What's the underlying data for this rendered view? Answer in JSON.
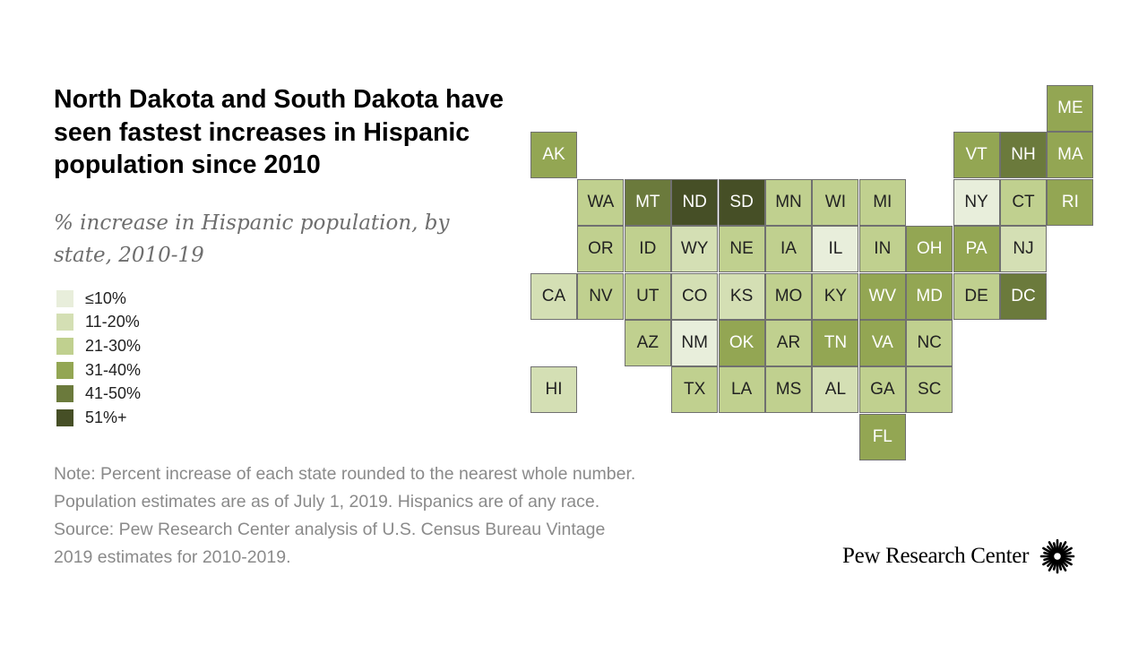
{
  "title": "North Dakota and South Dakota have seen fastest increases in Hispanic population since 2010",
  "subtitle": "% increase in Hispanic population, by state, 2010-19",
  "legend": [
    {
      "label": "≤10%",
      "color": "#e8eedb"
    },
    {
      "label": "11-20%",
      "color": "#d4dfb4"
    },
    {
      "label": "21-30%",
      "color": "#c0d08f"
    },
    {
      "label": "31-40%",
      "color": "#93a653"
    },
    {
      "label": "41-50%",
      "color": "#6b7a3c"
    },
    {
      "label": "51%+",
      "color": "#464f26"
    }
  ],
  "note": [
    "Note: Percent increase of each state rounded to the nearest whole number.",
    "Population estimates are as of July 1, 2019. Hispanics are of any race.",
    "Source: Pew Research Center analysis of U.S. Census Bureau Vintage",
    "2019 estimates for 2010-2019."
  ],
  "brand": "Pew Research Center",
  "states": [
    {
      "abbr": "ME",
      "col": 11,
      "row": 0,
      "bin": 3
    },
    {
      "abbr": "AK",
      "col": 0,
      "row": 1,
      "bin": 3
    },
    {
      "abbr": "VT",
      "col": 9,
      "row": 1,
      "bin": 3
    },
    {
      "abbr": "NH",
      "col": 10,
      "row": 1,
      "bin": 4
    },
    {
      "abbr": "MA",
      "col": 11,
      "row": 1,
      "bin": 3
    },
    {
      "abbr": "WA",
      "col": 1,
      "row": 2,
      "bin": 2
    },
    {
      "abbr": "MT",
      "col": 2,
      "row": 2,
      "bin": 4
    },
    {
      "abbr": "ND",
      "col": 3,
      "row": 2,
      "bin": 5
    },
    {
      "abbr": "SD",
      "col": 4,
      "row": 2,
      "bin": 5
    },
    {
      "abbr": "MN",
      "col": 5,
      "row": 2,
      "bin": 2
    },
    {
      "abbr": "WI",
      "col": 6,
      "row": 2,
      "bin": 2
    },
    {
      "abbr": "MI",
      "col": 7,
      "row": 2,
      "bin": 2
    },
    {
      "abbr": "NY",
      "col": 9,
      "row": 2,
      "bin": 0
    },
    {
      "abbr": "CT",
      "col": 10,
      "row": 2,
      "bin": 2
    },
    {
      "abbr": "RI",
      "col": 11,
      "row": 2,
      "bin": 3
    },
    {
      "abbr": "OR",
      "col": 1,
      "row": 3,
      "bin": 2
    },
    {
      "abbr": "ID",
      "col": 2,
      "row": 3,
      "bin": 2
    },
    {
      "abbr": "WY",
      "col": 3,
      "row": 3,
      "bin": 1
    },
    {
      "abbr": "NE",
      "col": 4,
      "row": 3,
      "bin": 2
    },
    {
      "abbr": "IA",
      "col": 5,
      "row": 3,
      "bin": 2
    },
    {
      "abbr": "IL",
      "col": 6,
      "row": 3,
      "bin": 0
    },
    {
      "abbr": "IN",
      "col": 7,
      "row": 3,
      "bin": 2
    },
    {
      "abbr": "OH",
      "col": 8,
      "row": 3,
      "bin": 3
    },
    {
      "abbr": "PA",
      "col": 9,
      "row": 3,
      "bin": 3
    },
    {
      "abbr": "NJ",
      "col": 10,
      "row": 3,
      "bin": 1
    },
    {
      "abbr": "CA",
      "col": 0,
      "row": 4,
      "bin": 1
    },
    {
      "abbr": "NV",
      "col": 1,
      "row": 4,
      "bin": 2
    },
    {
      "abbr": "UT",
      "col": 2,
      "row": 4,
      "bin": 2
    },
    {
      "abbr": "CO",
      "col": 3,
      "row": 4,
      "bin": 1
    },
    {
      "abbr": "KS",
      "col": 4,
      "row": 4,
      "bin": 1
    },
    {
      "abbr": "MO",
      "col": 5,
      "row": 4,
      "bin": 2
    },
    {
      "abbr": "KY",
      "col": 6,
      "row": 4,
      "bin": 2
    },
    {
      "abbr": "WV",
      "col": 7,
      "row": 4,
      "bin": 3
    },
    {
      "abbr": "MD",
      "col": 8,
      "row": 4,
      "bin": 3
    },
    {
      "abbr": "DE",
      "col": 9,
      "row": 4,
      "bin": 2
    },
    {
      "abbr": "DC",
      "col": 10,
      "row": 4,
      "bin": 4
    },
    {
      "abbr": "AZ",
      "col": 2,
      "row": 5,
      "bin": 2
    },
    {
      "abbr": "NM",
      "col": 3,
      "row": 5,
      "bin": 0
    },
    {
      "abbr": "OK",
      "col": 4,
      "row": 5,
      "bin": 3
    },
    {
      "abbr": "AR",
      "col": 5,
      "row": 5,
      "bin": 2
    },
    {
      "abbr": "TN",
      "col": 6,
      "row": 5,
      "bin": 3
    },
    {
      "abbr": "VA",
      "col": 7,
      "row": 5,
      "bin": 3
    },
    {
      "abbr": "NC",
      "col": 8,
      "row": 5,
      "bin": 2
    },
    {
      "abbr": "HI",
      "col": 0,
      "row": 6,
      "bin": 1
    },
    {
      "abbr": "TX",
      "col": 3,
      "row": 6,
      "bin": 2
    },
    {
      "abbr": "LA",
      "col": 4,
      "row": 6,
      "bin": 2
    },
    {
      "abbr": "MS",
      "col": 5,
      "row": 6,
      "bin": 2
    },
    {
      "abbr": "AL",
      "col": 6,
      "row": 6,
      "bin": 1
    },
    {
      "abbr": "GA",
      "col": 7,
      "row": 6,
      "bin": 2
    },
    {
      "abbr": "SC",
      "col": 8,
      "row": 6,
      "bin": 2
    },
    {
      "abbr": "FL",
      "col": 7,
      "row": 7,
      "bin": 3
    }
  ]
}
